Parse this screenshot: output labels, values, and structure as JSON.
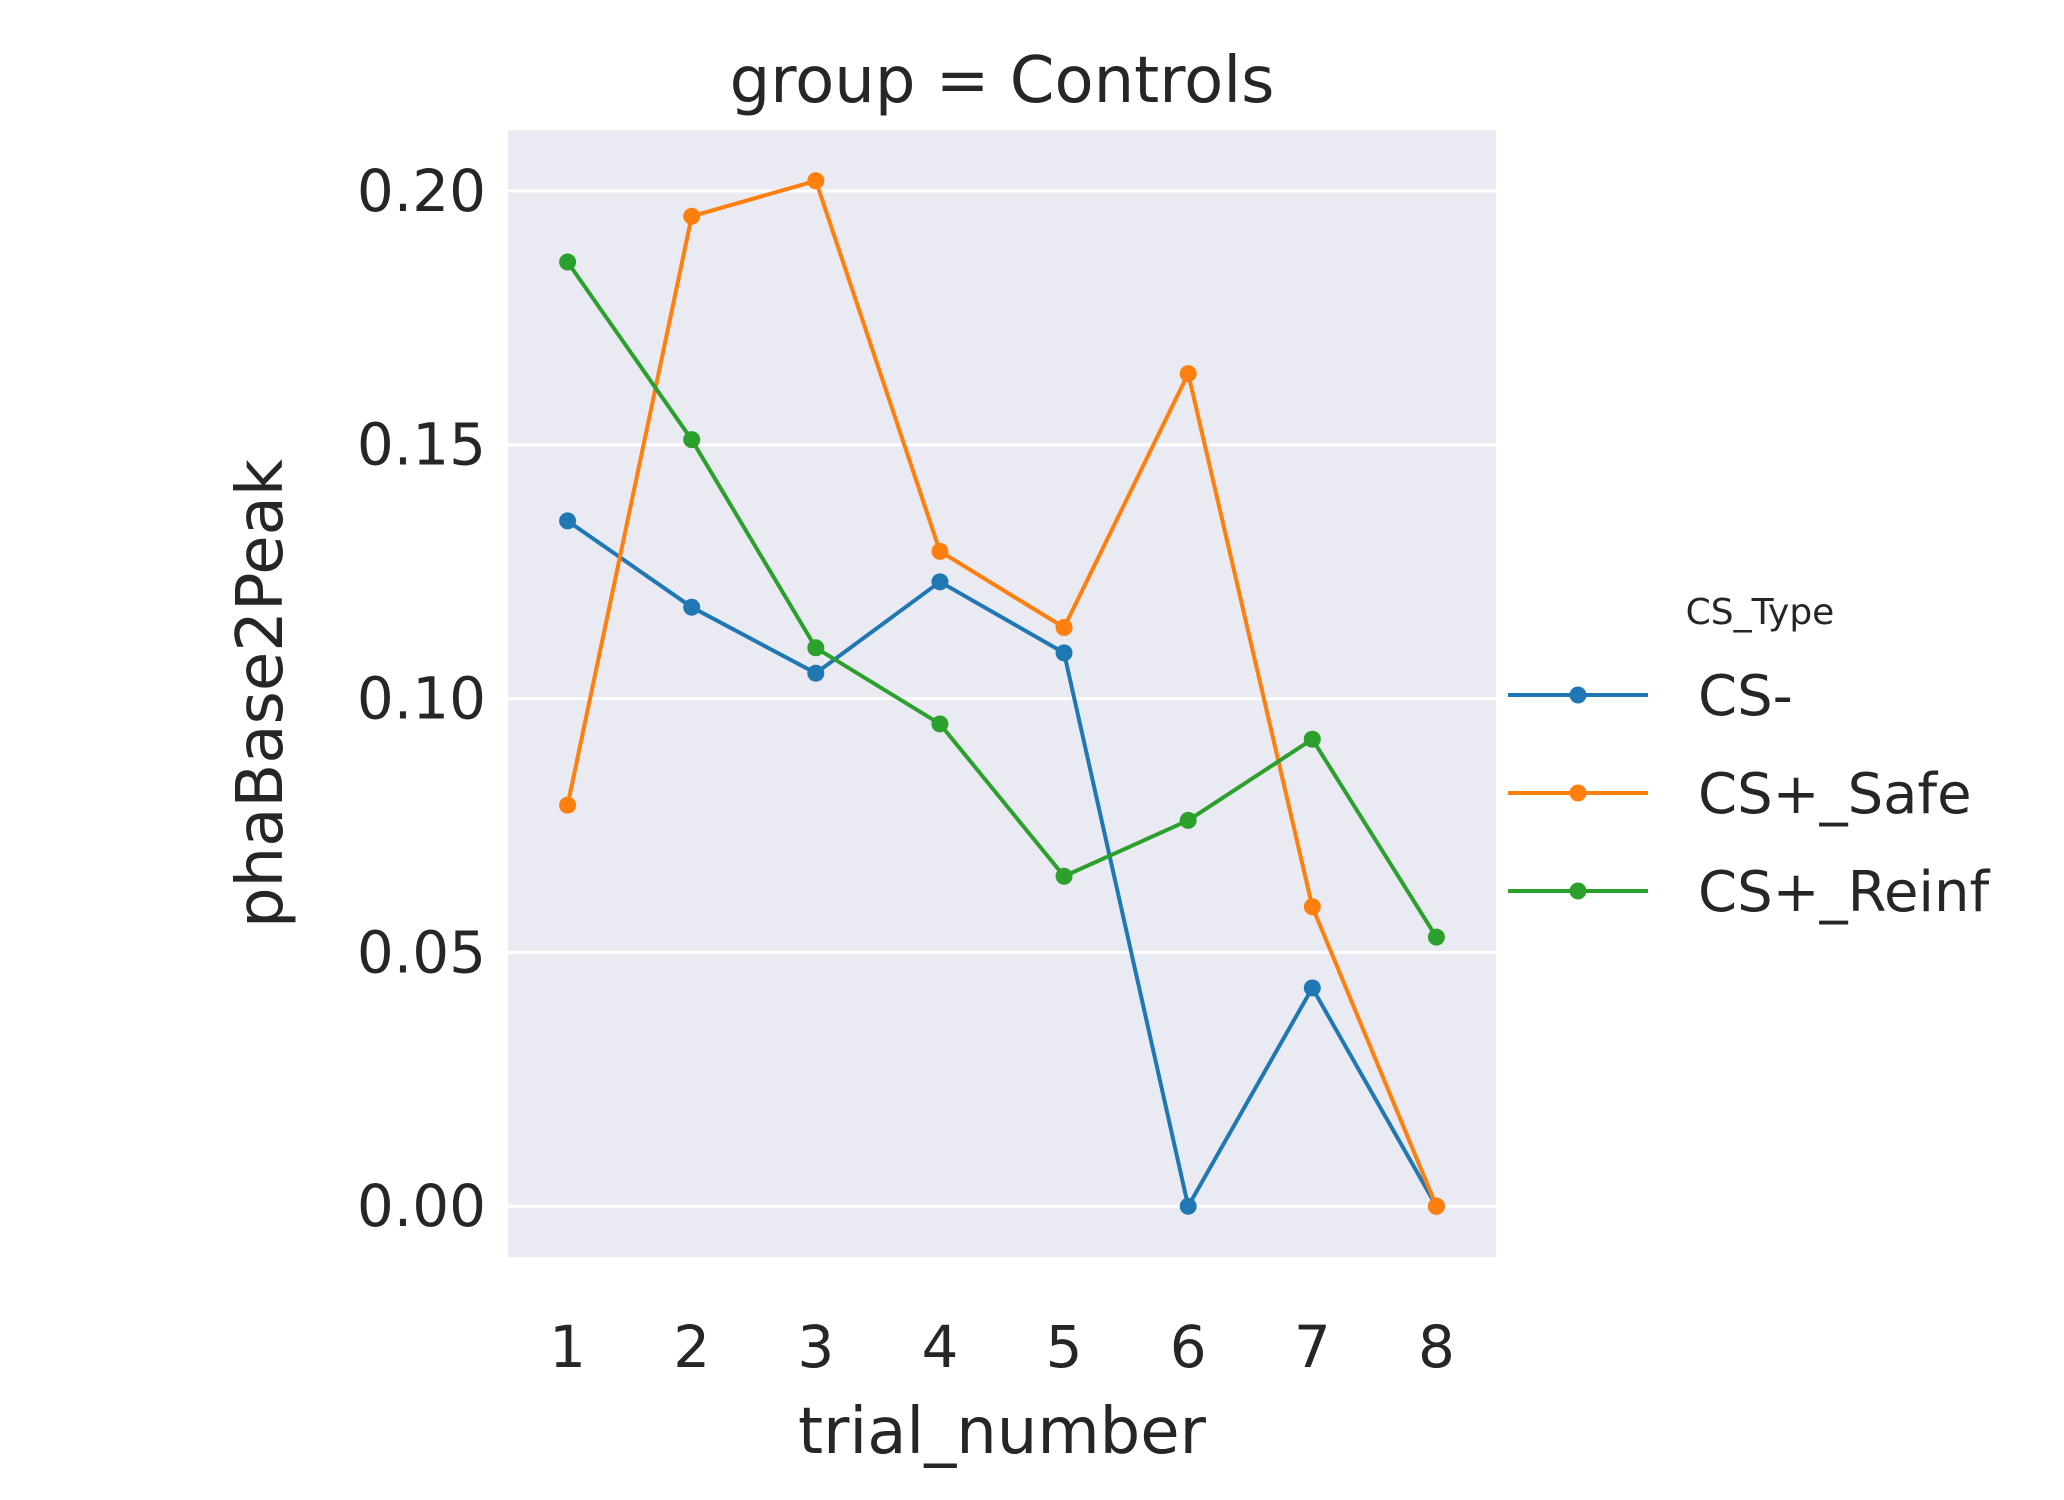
{
  "chart_data": {
    "type": "line",
    "title": "group = Controls",
    "xlabel": "trial_number",
    "ylabel": "phaBase2Peak",
    "x": [
      1,
      2,
      3,
      4,
      5,
      6,
      7,
      8
    ],
    "ylim": [
      -0.01,
      0.212
    ],
    "yticks": [
      0.0,
      0.05,
      0.1,
      0.15,
      0.2
    ],
    "ytick_labels": [
      "0.00",
      "0.05",
      "0.10",
      "0.15",
      "0.20"
    ],
    "xtick_labels": [
      "1",
      "2",
      "3",
      "4",
      "5",
      "6",
      "7",
      "8"
    ],
    "grid": true,
    "legend": {
      "title": "CS_Type",
      "placement": "center-right outside"
    },
    "series": [
      {
        "name": "CS-",
        "color": "#1f77b4",
        "values": [
          0.135,
          0.118,
          0.105,
          0.123,
          0.109,
          0.0,
          0.043,
          0.0
        ]
      },
      {
        "name": "CS+_Safe",
        "color": "#ff7f0e",
        "values": [
          0.079,
          0.195,
          0.202,
          0.129,
          0.114,
          0.164,
          0.059,
          0.0
        ]
      },
      {
        "name": "CS+_Reinf",
        "color": "#2ca02c",
        "values": [
          0.186,
          0.151,
          0.11,
          0.095,
          0.065,
          0.076,
          0.092,
          0.053
        ]
      }
    ]
  }
}
